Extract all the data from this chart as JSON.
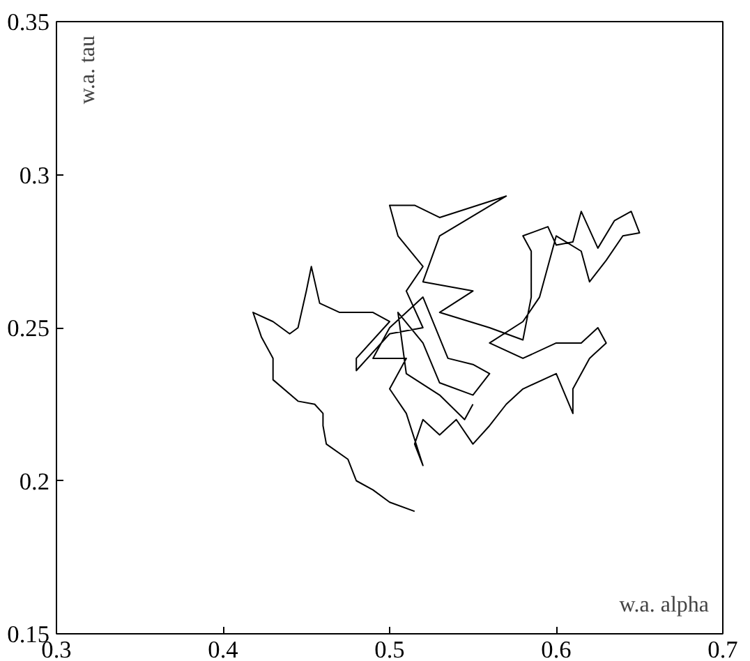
{
  "chart_data": {
    "type": "line",
    "xlabel": "w.a. alpha",
    "ylabel": "w.a. tau",
    "xlim": [
      0.3,
      0.7
    ],
    "ylim": [
      0.15,
      0.35
    ],
    "xticks": [
      0.3,
      0.4,
      0.5,
      0.6,
      0.7
    ],
    "yticks": [
      0.15,
      0.2,
      0.25,
      0.3,
      0.35
    ],
    "grid": false,
    "series": [
      {
        "color": "#000000",
        "x": [
          0.515,
          0.5,
          0.49,
          0.48,
          0.475,
          0.462,
          0.46,
          0.46,
          0.455,
          0.445,
          0.43,
          0.43,
          0.423,
          0.418,
          0.43,
          0.44,
          0.445,
          0.45,
          0.453,
          0.458,
          0.47,
          0.49,
          0.5,
          0.48,
          0.48,
          0.5,
          0.52,
          0.51,
          0.52,
          0.505,
          0.5,
          0.515,
          0.53,
          0.57,
          0.53,
          0.52,
          0.55,
          0.53,
          0.56,
          0.58,
          0.585,
          0.585,
          0.58,
          0.595,
          0.6,
          0.61,
          0.615,
          0.625,
          0.635,
          0.645,
          0.65,
          0.64,
          0.63,
          0.62,
          0.615,
          0.6,
          0.59,
          0.58,
          0.56,
          0.58,
          0.6,
          0.615,
          0.625,
          0.63,
          0.62,
          0.61,
          0.61,
          0.6,
          0.58,
          0.57,
          0.56,
          0.55,
          0.54,
          0.53,
          0.52,
          0.515,
          0.52,
          0.51,
          0.5,
          0.51,
          0.49,
          0.5,
          0.52,
          0.535,
          0.55,
          0.56,
          0.55,
          0.53,
          0.52,
          0.505,
          0.51,
          0.53,
          0.545,
          0.55
        ],
        "values": [
          0.19,
          0.193,
          0.197,
          0.2,
          0.207,
          0.212,
          0.218,
          0.222,
          0.225,
          0.226,
          0.233,
          0.24,
          0.247,
          0.255,
          0.252,
          0.248,
          0.25,
          0.262,
          0.27,
          0.258,
          0.255,
          0.255,
          0.252,
          0.24,
          0.236,
          0.248,
          0.25,
          0.262,
          0.27,
          0.28,
          0.29,
          0.29,
          0.286,
          0.293,
          0.28,
          0.265,
          0.262,
          0.255,
          0.25,
          0.246,
          0.26,
          0.275,
          0.28,
          0.283,
          0.277,
          0.278,
          0.288,
          0.276,
          0.285,
          0.288,
          0.281,
          0.28,
          0.272,
          0.265,
          0.275,
          0.28,
          0.26,
          0.252,
          0.245,
          0.24,
          0.245,
          0.245,
          0.25,
          0.245,
          0.24,
          0.23,
          0.222,
          0.235,
          0.23,
          0.225,
          0.218,
          0.212,
          0.22,
          0.215,
          0.22,
          0.212,
          0.205,
          0.222,
          0.23,
          0.24,
          0.24,
          0.25,
          0.26,
          0.24,
          0.238,
          0.235,
          0.228,
          0.232,
          0.245,
          0.255,
          0.235,
          0.228,
          0.22,
          0.225
        ]
      }
    ]
  }
}
